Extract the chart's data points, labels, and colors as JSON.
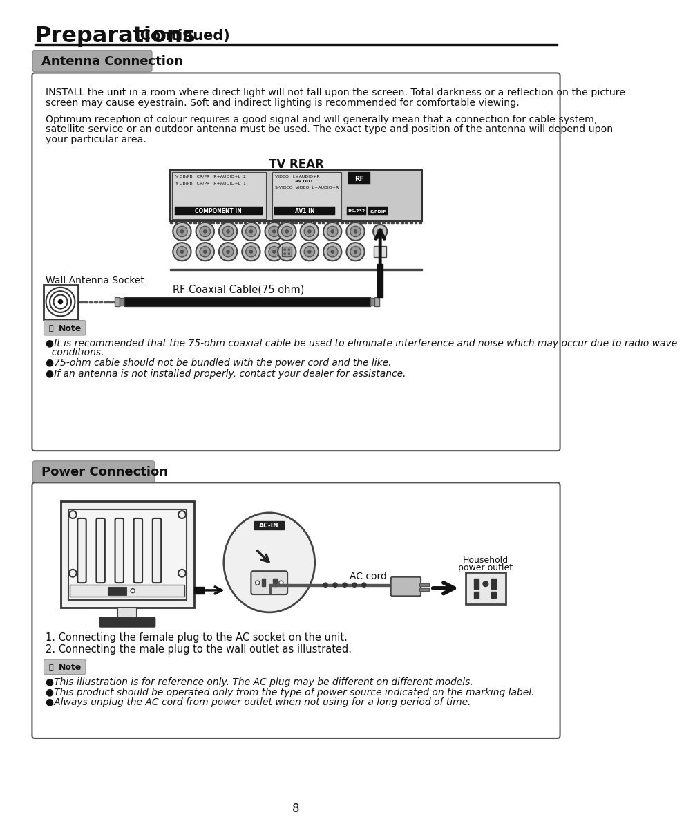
{
  "page_bg": "#ffffff",
  "title_bold": "Preparations",
  "title_normal": " (Continued)",
  "section1_label": "Antenna Connection",
  "section2_label": "Power Connection",
  "label_bg": "#a8a8a8",
  "header_line_color": "#1a0a00",
  "para1_line1": "INSTALL the unit in a room where direct light will not fall upon the screen. Total darkness or a reflection on the picture",
  "para1_line2": "screen may cause eyestrain. Soft and indirect lighting is recommended for comfortable viewing.",
  "para2_line1": "Optimum reception of colour requires a good signal and will generally mean that a connection for cable system,",
  "para2_line2": "satellite service or an outdoor antenna must be used. The exact type and position of the antenna will depend upon",
  "para2_line3": "your particular area.",
  "tv_rear_label": "TV REAR",
  "wall_antenna_label": "Wall Antenna Socket",
  "rf_cable_label": "RF Coaxial Cable(75 ohm)",
  "note_bullet1_a": "●It is recommended that the 75-ohm coaxial cable be used to eliminate interference and noise which may occur due to radio wave",
  "note_bullet1_b": "  conditions.",
  "note_bullet2": "●75-ohm cable should not be bundled with the power cord and the like.",
  "note_bullet3": "●If an antenna is not installed properly, contact your dealer for assistance.",
  "power_step1": "1. Connecting the female plug to the AC socket on the unit.",
  "power_step2": "2. Connecting the male plug to the wall outlet as illustrated.",
  "household_label_line1": "Household",
  "household_label_line2": "power outlet",
  "ac_cord_label": "AC cord",
  "power_note1": "●This illustration is for reference only. The AC plug may be different on different models.",
  "power_note2": "●This product should be operated only from the type of power source indicated on the marking label.",
  "power_note3": "●Always unplug the AC cord from power outlet when not using for a long period of time.",
  "page_number": "8"
}
